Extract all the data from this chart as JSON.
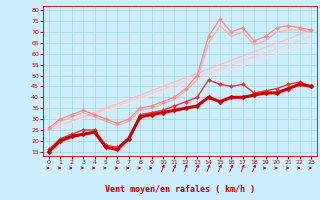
{
  "background_color": "#cceeff",
  "grid_color": "#99cccc",
  "x_label": "Vent moyen/en rafales ( km/h )",
  "x_ticks": [
    0,
    1,
    2,
    3,
    4,
    5,
    6,
    7,
    8,
    9,
    10,
    11,
    12,
    13,
    14,
    15,
    16,
    17,
    18,
    19,
    20,
    21,
    22,
    23
  ],
  "y_ticks": [
    15,
    20,
    25,
    30,
    35,
    40,
    45,
    50,
    55,
    60,
    65,
    70,
    75,
    80
  ],
  "ylim": [
    13,
    82
  ],
  "xlim": [
    -0.5,
    23.5
  ],
  "series": [
    {
      "name": "regression_lightest",
      "x": [
        0,
        23
      ],
      "y": [
        25,
        71
      ],
      "color": "#ffbbbb",
      "linewidth": 0.9,
      "marker": null,
      "markersize": 0,
      "zorder": 1
    },
    {
      "name": "regression_light2",
      "x": [
        0,
        23
      ],
      "y": [
        25,
        68
      ],
      "color": "#ffcccc",
      "linewidth": 0.9,
      "marker": null,
      "markersize": 0,
      "zorder": 1
    },
    {
      "name": "regression_light3",
      "x": [
        0,
        23
      ],
      "y": [
        25,
        65
      ],
      "color": "#ffdddd",
      "linewidth": 0.8,
      "marker": null,
      "markersize": 0,
      "zorder": 1
    },
    {
      "name": "line_upper_pink_markers",
      "x": [
        0,
        1,
        2,
        3,
        4,
        5,
        6,
        7,
        8,
        9,
        10,
        11,
        12,
        13,
        14,
        15,
        16,
        17,
        18,
        19,
        20,
        21,
        22,
        23
      ],
      "y": [
        26,
        30,
        32,
        34,
        32,
        30,
        28,
        30,
        35,
        36,
        38,
        40,
        44,
        50,
        68,
        76,
        70,
        72,
        66,
        68,
        72,
        73,
        72,
        71
      ],
      "color": "#ff8888",
      "linewidth": 0.9,
      "marker": "D",
      "markersize": 2.0,
      "zorder": 3
    },
    {
      "name": "line_upper2_pink",
      "x": [
        0,
        1,
        2,
        3,
        4,
        5,
        6,
        7,
        8,
        9,
        10,
        11,
        12,
        13,
        14,
        15,
        16,
        17,
        18,
        19,
        20,
        21,
        22,
        23
      ],
      "y": [
        25,
        29,
        31,
        33,
        31,
        29,
        27,
        29,
        34,
        35,
        37,
        39,
        43,
        48,
        65,
        73,
        68,
        70,
        64,
        66,
        70,
        71,
        71,
        70
      ],
      "color": "#ffaaaa",
      "linewidth": 0.9,
      "marker": null,
      "markersize": 0,
      "zorder": 2
    },
    {
      "name": "line_medium_red",
      "x": [
        0,
        1,
        2,
        3,
        4,
        5,
        6,
        7,
        8,
        9,
        10,
        11,
        12,
        13,
        14,
        15,
        16,
        17,
        18,
        19,
        20,
        21,
        22,
        23
      ],
      "y": [
        16,
        21,
        23,
        25,
        25,
        18,
        17,
        21,
        32,
        33,
        34,
        36,
        38,
        40,
        48,
        46,
        45,
        46,
        42,
        43,
        44,
        46,
        47,
        45
      ],
      "color": "#ee3333",
      "linewidth": 1.0,
      "marker": "D",
      "markersize": 2.0,
      "zorder": 4
    },
    {
      "name": "line_dark_red_thick",
      "x": [
        0,
        1,
        2,
        3,
        4,
        5,
        6,
        7,
        8,
        9,
        10,
        11,
        12,
        13,
        14,
        15,
        16,
        17,
        18,
        19,
        20,
        21,
        22,
        23
      ],
      "y": [
        15,
        20,
        22,
        23,
        24,
        17,
        16,
        21,
        31,
        32,
        33,
        34,
        35,
        36,
        40,
        38,
        40,
        40,
        41,
        42,
        42,
        44,
        46,
        45
      ],
      "color": "#cc0000",
      "linewidth": 2.2,
      "marker": "D",
      "markersize": 2.5,
      "zorder": 5
    }
  ],
  "arrow_angles_deg": [
    0,
    0,
    0,
    0,
    0,
    0,
    0,
    0,
    0,
    0,
    45,
    45,
    45,
    45,
    45,
    45,
    45,
    45,
    45,
    0,
    0,
    0,
    0,
    0
  ],
  "arrow_color": "#cc0000"
}
